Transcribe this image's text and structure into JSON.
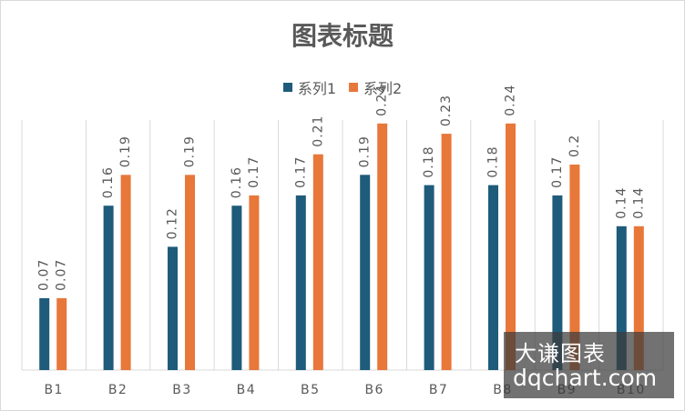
{
  "chart_data": {
    "type": "bar",
    "title": "图表标题",
    "categories": [
      "B1",
      "B2",
      "B3",
      "B4",
      "B5",
      "B6",
      "B7",
      "B8",
      "B9",
      "B10"
    ],
    "series": [
      {
        "name": "系列1",
        "values": [
          0.07,
          0.16,
          0.12,
          0.16,
          0.17,
          0.19,
          0.18,
          0.18,
          0.17,
          0.14
        ],
        "color": "#1f5b7a"
      },
      {
        "name": "系列2",
        "values": [
          0.07,
          0.19,
          0.19,
          0.17,
          0.21,
          0.24,
          0.23,
          0.24,
          0.2,
          0.14
        ],
        "color": "#e8773a"
      }
    ],
    "data_label_text": {
      "系列1": [
        "0.07",
        "0.16",
        "0.12",
        "0.16",
        "0.17",
        "0.19",
        "0.18",
        "0.18",
        "0.17",
        "0.14"
      ],
      "系列2": [
        "0.07",
        "0.19",
        "0.19",
        "0.17",
        "0.21",
        "0.24",
        "0.23",
        "0.24",
        "0.2",
        "0.14"
      ]
    },
    "ylim": [
      0,
      0.3
    ],
    "grid": "vertical category separators",
    "legend_position": "top",
    "colors": {
      "text": "#595959",
      "gridline": "#d9d9d9"
    }
  },
  "watermark": {
    "line1": "大谦图表",
    "line2": "dqchart.com"
  }
}
